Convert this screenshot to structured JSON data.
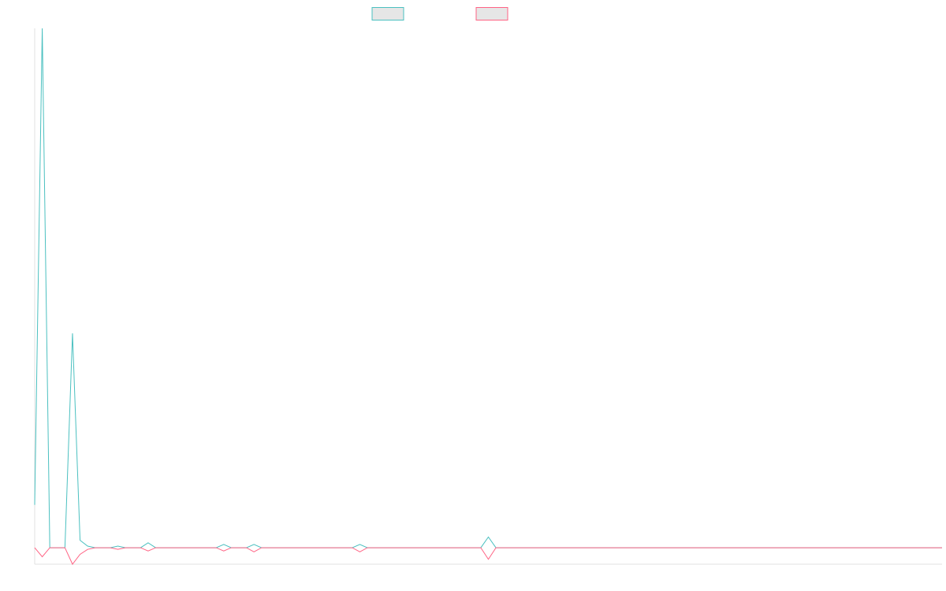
{
  "chart_data": {
    "type": "line",
    "title": "",
    "xlabel": "",
    "ylabel": "",
    "legend": {
      "position": "top-center"
    },
    "grid": false,
    "x": [
      0,
      1,
      2,
      3,
      4,
      5,
      6,
      7,
      8,
      9,
      10,
      11,
      12,
      13,
      14,
      15,
      16,
      17,
      18,
      19,
      20,
      21,
      22,
      23,
      24,
      25,
      26,
      27,
      28,
      29,
      30,
      31,
      32,
      33,
      34,
      35,
      36,
      37,
      38,
      39,
      40,
      41,
      42,
      43,
      44,
      45,
      46,
      47,
      48,
      49,
      50,
      51,
      52,
      53,
      54,
      55,
      56,
      57,
      58,
      59,
      60,
      61,
      62,
      63,
      64,
      65,
      66,
      67,
      68,
      69,
      70,
      71,
      72,
      73,
      74,
      75,
      76,
      77,
      78,
      79,
      80,
      81,
      82,
      83,
      84,
      85,
      86,
      87,
      88,
      89,
      90,
      91,
      92,
      93,
      94,
      95,
      96,
      97,
      98,
      99,
      100,
      101,
      102,
      103,
      104,
      105,
      106,
      107,
      108,
      109,
      110,
      111,
      112,
      113,
      114,
      115,
      116,
      117,
      118,
      119,
      120
    ],
    "ylim": [
      -1.0,
      31.5
    ],
    "series": [
      {
        "name": "",
        "color": "#4bc0c0",
        "fill": "#e6e6e6",
        "values": [
          2.6,
          31.5,
          0,
          0,
          0,
          13.0,
          0.45,
          0.1,
          0,
          0,
          0,
          0.1,
          0,
          0,
          0,
          0.3,
          0,
          0,
          0,
          0,
          0,
          0,
          0,
          0,
          0,
          0.2,
          0,
          0,
          0,
          0.2,
          0,
          0,
          0,
          0,
          0,
          0,
          0,
          0,
          0,
          0,
          0,
          0,
          0,
          0.2,
          0,
          0,
          0,
          0,
          0,
          0,
          0,
          0,
          0,
          0,
          0,
          0,
          0,
          0,
          0,
          0,
          0.65,
          0,
          0,
          0,
          0,
          0,
          0,
          0,
          0,
          0,
          0,
          0,
          0,
          0,
          0,
          0,
          0,
          0,
          0,
          0,
          0,
          0,
          0,
          0,
          0,
          0,
          0,
          0,
          0,
          0,
          0,
          0,
          0,
          0,
          0,
          0,
          0,
          0,
          0,
          0,
          0,
          0,
          0,
          0,
          0,
          0,
          0,
          0,
          0,
          0,
          0,
          0,
          0,
          0,
          0,
          0,
          0,
          0,
          0,
          0,
          0
        ]
      },
      {
        "name": "",
        "color": "#ff6384",
        "fill": "#e6e6e6",
        "values": [
          0,
          -0.55,
          0,
          0,
          0,
          -1.0,
          -0.4,
          -0.1,
          0,
          0,
          0,
          -0.1,
          0,
          0,
          0,
          -0.2,
          0,
          0,
          0,
          0,
          0,
          0,
          0,
          0,
          0,
          -0.2,
          0,
          0,
          0,
          -0.25,
          0,
          0,
          0,
          0,
          0,
          0,
          0,
          0,
          0,
          0,
          0,
          0,
          0,
          -0.25,
          0,
          0,
          0,
          0,
          0,
          0,
          0,
          0,
          0,
          0,
          0,
          0,
          0,
          0,
          0,
          0,
          -0.7,
          0,
          0,
          0,
          0,
          0,
          0,
          0,
          0,
          0,
          0,
          0,
          0,
          0,
          0,
          0,
          0,
          0,
          0,
          0,
          0,
          0,
          0,
          0,
          0,
          0,
          0,
          0,
          0,
          0,
          0,
          0,
          0,
          0,
          0,
          0,
          0,
          0,
          0,
          0,
          0,
          0,
          0,
          0,
          0,
          0,
          0,
          0,
          0,
          0,
          0,
          0,
          0,
          0,
          0,
          0,
          0,
          0,
          0,
          0,
          0
        ]
      }
    ]
  }
}
